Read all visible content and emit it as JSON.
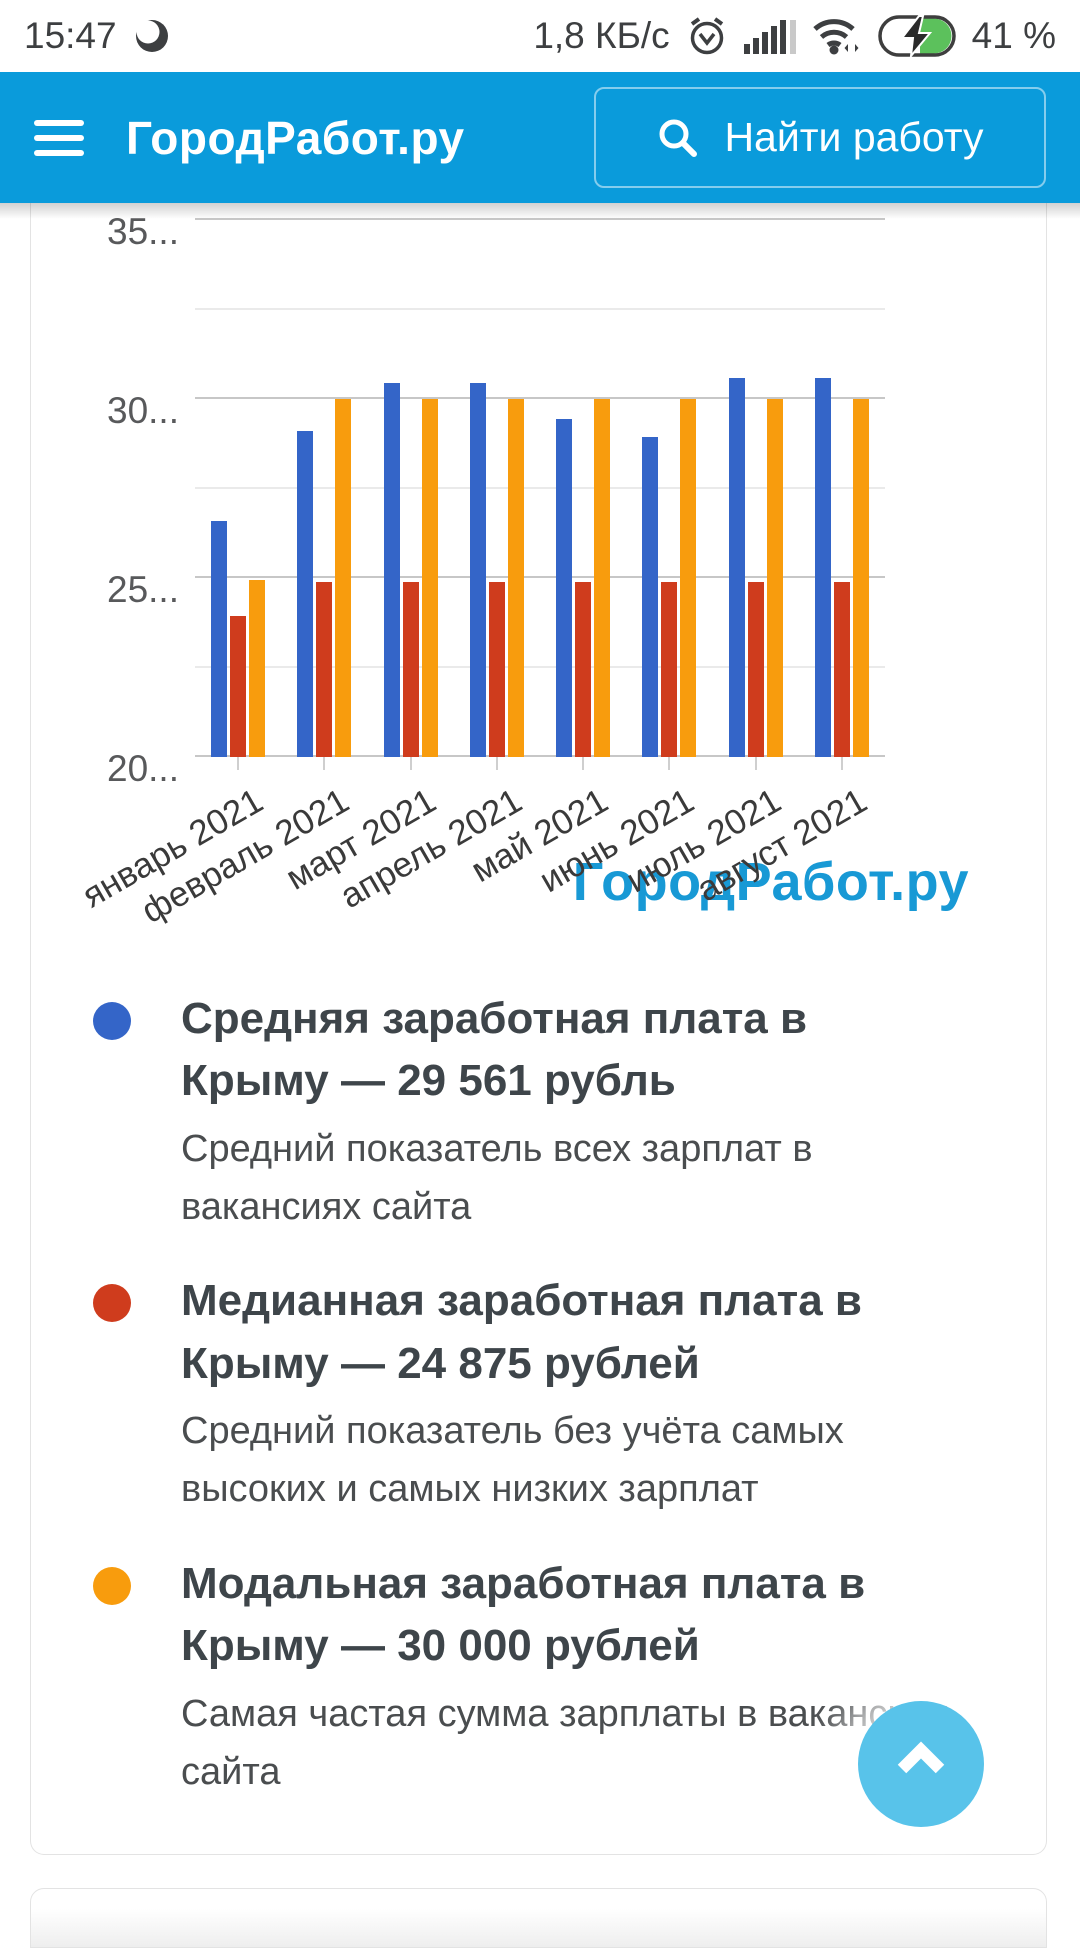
{
  "status_bar": {
    "time": "15:47",
    "network_speed": "1,8 КБ/с",
    "battery_percent": "41 %",
    "icons": [
      "data-saver-icon",
      "alarm-icon",
      "signal-icon",
      "wifi-icon",
      "battery-charging-icon"
    ],
    "battery_color": "#5cc15c"
  },
  "header": {
    "title": "ГородРабот.ру",
    "search_button": "Найти работу",
    "background": "#0a9bdb"
  },
  "chart_data": {
    "type": "bar",
    "title": "",
    "xlabel": "",
    "ylabel": "",
    "categories": [
      "январь 2021",
      "февраль 2021",
      "март 2021",
      "апрель 2021",
      "май 2021",
      "июнь 2021",
      "июль 2021",
      "август 2021"
    ],
    "series": [
      {
        "name": "Средняя заработная плата",
        "color": "#3465c8",
        "values": [
          26600,
          29100,
          30450,
          30450,
          29450,
          28950,
          30600,
          30600
        ]
      },
      {
        "name": "Медианная заработная плата",
        "color": "#cf3c1d",
        "values": [
          23950,
          24875,
          24875,
          24875,
          24875,
          24875,
          24875,
          24875
        ]
      },
      {
        "name": "Модальная заработная плата",
        "color": "#f89c0d",
        "values": [
          24950,
          30000,
          30000,
          30000,
          30000,
          30000,
          30000,
          30000
        ]
      }
    ],
    "y_axis": {
      "min": 20000,
      "max_visible": 35475,
      "gridlines": [
        {
          "v": 35000,
          "label": "35...",
          "major": true
        },
        {
          "v": 32500,
          "label": "",
          "major": false
        },
        {
          "v": 30000,
          "label": "30...",
          "major": true
        },
        {
          "v": 27500,
          "label": "",
          "major": false
        },
        {
          "v": 25000,
          "label": "25...",
          "major": true
        },
        {
          "v": 22500,
          "label": "",
          "major": false
        },
        {
          "v": 20000,
          "label": "20...",
          "major": true
        }
      ]
    },
    "grid": true,
    "legend_position": "below",
    "watermark": "ГородРабот.ру"
  },
  "legend": {
    "items": [
      {
        "color": "#3465c8",
        "title": "Средняя заработная плата в Крыму — 29 561 рубль",
        "subtitle": "Средний показатель всех зарплат в вакансиях сайта"
      },
      {
        "color": "#cf3c1d",
        "title": "Медианная заработная плата в Крыму — 24 875 рублей",
        "subtitle": "Средний показатель без учёта самых высоких и самых низких зарплат"
      },
      {
        "color": "#f89c0d",
        "title": "Модальная заработная плата в Крыму — 30 000 рублей",
        "subtitle": "Самая частая сумма зарплаты в вакансиях сайта"
      }
    ]
  },
  "scroll_top_button": {
    "color": "#58c3ea",
    "icon": "chevron-up-icon"
  }
}
